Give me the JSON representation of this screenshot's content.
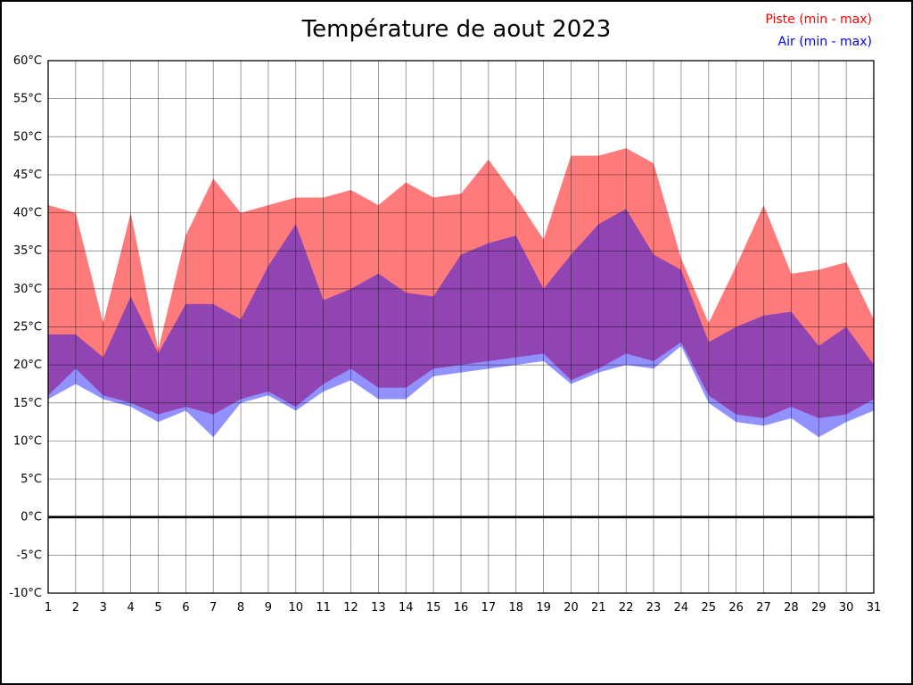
{
  "title": "Température de aout 2023",
  "legend": [
    {
      "label": "Piste (min - max)",
      "color": "#ff0000"
    },
    {
      "label": "Air (min - max)",
      "color": "#0000ff"
    }
  ],
  "chart_data": {
    "type": "area",
    "title": "Température de aout 2023",
    "xlabel": "",
    "ylabel": "",
    "x": [
      1,
      2,
      3,
      4,
      5,
      6,
      7,
      8,
      9,
      10,
      11,
      12,
      13,
      14,
      15,
      16,
      17,
      18,
      19,
      20,
      21,
      22,
      23,
      24,
      25,
      26,
      27,
      28,
      29,
      30,
      31
    ],
    "ylim": [
      -10,
      60
    ],
    "ytick_step": 5,
    "ytick_suffix": "°C",
    "grid": true,
    "zero_line": true,
    "legend_position": "top-right",
    "series": [
      {
        "name": "Piste min",
        "values": [
          16,
          19.5,
          16,
          15,
          13.5,
          14.5,
          13.5,
          15.5,
          16.5,
          14.5,
          17.5,
          19.5,
          17,
          17,
          19.5,
          20,
          20.5,
          21,
          21.5,
          18,
          19.5,
          21.5,
          20.5,
          23,
          16,
          13.5,
          13,
          14.5,
          13,
          13.5,
          15.5
        ]
      },
      {
        "name": "Piste max",
        "values": [
          41,
          40,
          25.5,
          40,
          22,
          37,
          44.5,
          40,
          41,
          42,
          42,
          43,
          41,
          44,
          42,
          42.5,
          47,
          42,
          36.5,
          47.5,
          47.5,
          48.5,
          46.5,
          34,
          25.5,
          33,
          41,
          32,
          32.5,
          33.5,
          26
        ]
      },
      {
        "name": "Air min",
        "values": [
          15.5,
          17.5,
          15.5,
          14.5,
          12.5,
          14,
          10.5,
          15,
          16,
          14,
          16.5,
          18,
          15.5,
          15.5,
          18.5,
          19,
          19.5,
          20,
          20.5,
          17.5,
          19,
          20,
          19.5,
          22.5,
          15,
          12.5,
          12,
          13,
          10.5,
          12.5,
          14
        ]
      },
      {
        "name": "Air max",
        "values": [
          24,
          24,
          21,
          29,
          21.5,
          28,
          28,
          26,
          33,
          38.5,
          28.5,
          30,
          32,
          29.5,
          29,
          34.5,
          36,
          37,
          30,
          34.5,
          38.5,
          40.5,
          34.5,
          32.5,
          23,
          25,
          26.5,
          27,
          22.5,
          25,
          20
        ]
      }
    ],
    "bands": [
      {
        "name": "piste-band",
        "min_series": "Piste min",
        "max_series": "Piste max",
        "fill": "rgba(255,0,0,0.52)"
      },
      {
        "name": "air-band",
        "min_series": "Air min",
        "max_series": "Air max",
        "fill": "rgba(0,0,255,0.43)"
      }
    ]
  }
}
